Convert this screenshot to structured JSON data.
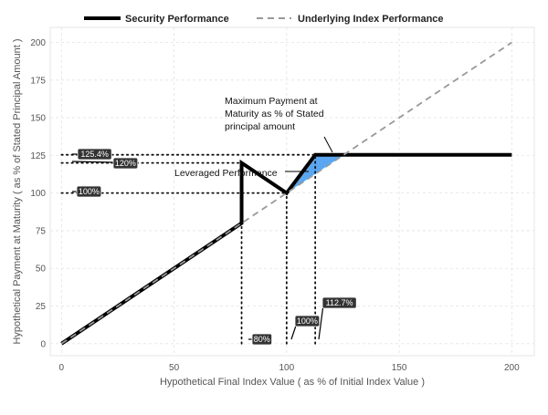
{
  "chart_data": {
    "type": "line",
    "xlabel": "Hypothetical Final Index Value ( as % of Initial Index Value )",
    "ylabel": "Hypothetical Payment at Maturity ( as % of Stated Principal Amount )",
    "xlim": [
      -5,
      210
    ],
    "ylim": [
      -8,
      210
    ],
    "x_ticks": [
      0,
      50,
      100,
      150,
      200
    ],
    "y_ticks": [
      0,
      25,
      50,
      75,
      100,
      125,
      150,
      175,
      200
    ],
    "grid": true,
    "legend_position": "top",
    "series": [
      {
        "name": "Security Performance",
        "style": "solid",
        "color": "#000000",
        "x": [
          0,
          80,
          80,
          100,
          112.7,
          200
        ],
        "y": [
          0,
          80,
          120,
          100,
          125.4,
          125.4
        ]
      },
      {
        "name": "Underlying Index Performance",
        "style": "dashed",
        "color": "#999999",
        "x": [
          0,
          200
        ],
        "y": [
          0,
          200
        ]
      }
    ],
    "shaded_region": {
      "color": "#5aa6f0",
      "x": [
        100,
        112.7,
        125.4
      ],
      "y": [
        100,
        125.4,
        125.4
      ]
    },
    "reference_lines": [
      {
        "axis": "y",
        "value": 125.4,
        "from": 0,
        "to": 112.7
      },
      {
        "axis": "y",
        "value": 120,
        "from": 0,
        "to": 80
      },
      {
        "axis": "y",
        "value": 100,
        "from": 0,
        "to": 100
      },
      {
        "axis": "x",
        "value": 80,
        "from": 0,
        "to": 80
      },
      {
        "axis": "x",
        "value": 100,
        "from": 0,
        "to": 100
      },
      {
        "axis": "x",
        "value": 112.7,
        "from": 0,
        "to": 125.4
      }
    ],
    "value_callouts": [
      {
        "text": "125.4%",
        "axis": "y",
        "value": 125.4
      },
      {
        "text": "120%",
        "axis": "y",
        "value": 120
      },
      {
        "text": "100%",
        "axis": "y",
        "value": 100
      },
      {
        "text": "80%",
        "axis": "x",
        "value": 80
      },
      {
        "text": "100%",
        "axis": "x",
        "value": 100
      },
      {
        "text": "112.7%",
        "axis": "x",
        "value": 112.7
      }
    ],
    "annotations": [
      {
        "lines": [
          "Maximum Payment at",
          "Maturity as % of Stated",
          "principal amount"
        ]
      },
      {
        "lines": [
          "Leveraged Performance"
        ]
      }
    ]
  }
}
